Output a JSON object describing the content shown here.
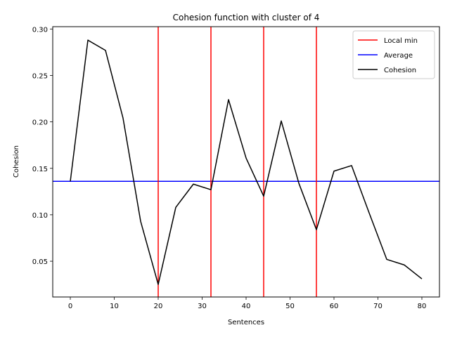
{
  "chart_data": {
    "type": "line",
    "title": "Cohesion function with cluster of 4",
    "xlabel": "Sentences",
    "ylabel": "Cohesion",
    "xlim": [
      -4,
      84
    ],
    "ylim": [
      0.0115,
      0.3025
    ],
    "xticks": [
      0,
      10,
      20,
      30,
      40,
      50,
      60,
      70,
      80
    ],
    "xtick_labels": [
      "0",
      "10",
      "20",
      "30",
      "40",
      "50",
      "60",
      "70",
      "80"
    ],
    "yticks": [
      0.05,
      0.1,
      0.15,
      0.2,
      0.25,
      0.3
    ],
    "ytick_labels": [
      "0.05",
      "0.10",
      "0.15",
      "0.20",
      "0.25",
      "0.30"
    ],
    "grid": false,
    "legend_position": "top-right",
    "legend": [
      {
        "label": "Local min",
        "color": "#ff0000"
      },
      {
        "label": "Average",
        "color": "#0000ff"
      },
      {
        "label": "Cohesion",
        "color": "#000000"
      }
    ],
    "series": [
      {
        "name": "Cohesion",
        "color": "#000000",
        "x": [
          0,
          4,
          8,
          12,
          16,
          20,
          24,
          28,
          32,
          36,
          40,
          44,
          48,
          52,
          56,
          60,
          64,
          68,
          72,
          76,
          80
        ],
        "values": [
          0.136,
          0.288,
          0.277,
          0.204,
          0.093,
          0.025,
          0.108,
          0.133,
          0.127,
          0.224,
          0.161,
          0.12,
          0.201,
          0.134,
          0.084,
          0.147,
          0.153,
          0.102,
          0.052,
          0.046,
          0.031
        ]
      }
    ],
    "average": {
      "name": "Average",
      "value": 0.136,
      "color": "#0000ff"
    },
    "local_min": {
      "name": "Local min",
      "x": [
        20,
        32,
        44,
        56
      ],
      "color": "#ff0000"
    }
  }
}
